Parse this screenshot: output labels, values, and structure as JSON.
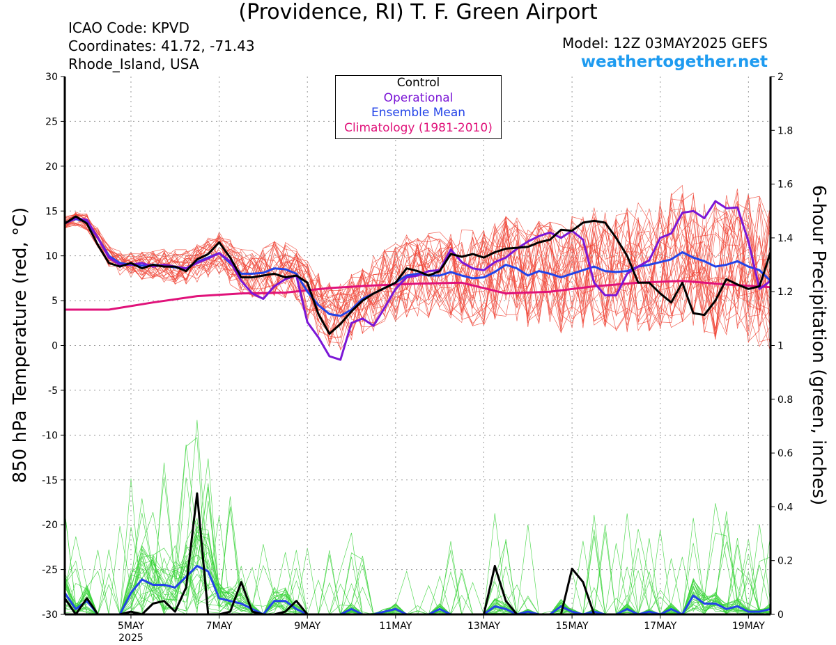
{
  "header": {
    "title": "(Providence, RI) T. F. Green Airport",
    "icao": "ICAO Code: KPVD",
    "coords": "Coordinates: 41.72, -71.43",
    "region": "Rhode_Island, USA",
    "model": "Model: 12Z 03MAY2025 GEFS",
    "site": "weathertogether.net"
  },
  "colors": {
    "control": "#000000",
    "operational": "#7b16d6",
    "mean": "#2343e8",
    "climo": "#e0127a",
    "members_temp": "#f0483a",
    "members_precip": "#39d43a",
    "site": "#1e9bf0"
  },
  "chart_data": {
    "type": "line",
    "x_unit": "6-hour steps from 03MAY2025 12Z",
    "x_range": [
      0,
      64
    ],
    "x_ticks": [
      {
        "x": 6,
        "label": "5MAY",
        "sub": "2025"
      },
      {
        "x": 14,
        "label": "7MAY"
      },
      {
        "x": 22,
        "label": "9MAY"
      },
      {
        "x": 30,
        "label": "11MAY"
      },
      {
        "x": 38,
        "label": "13MAY"
      },
      {
        "x": 46,
        "label": "15MAY"
      },
      {
        "x": 54,
        "label": "17MAY"
      },
      {
        "x": 62,
        "label": "19MAY"
      }
    ],
    "y_left": {
      "label": "850 hPa Temperature (red, °C)",
      "range": [
        -30,
        30
      ],
      "ticks": [
        "30",
        "25",
        "20",
        "15",
        "10",
        "5",
        "0",
        "-5",
        "-10",
        "-15",
        "-20",
        "-25",
        "-30"
      ],
      "tick_values": [
        30,
        25,
        20,
        15,
        10,
        5,
        0,
        -5,
        -10,
        -15,
        -20,
        -25,
        -30
      ]
    },
    "y_right": {
      "label": "6-hour Precipitation (green, inches)",
      "range": [
        0,
        2
      ],
      "ticks": [
        "2",
        "1.8",
        "1.6",
        "1.4",
        "1.2",
        "1",
        "0.8",
        "0.6",
        "0.4",
        "0.2",
        "0"
      ],
      "tick_values": [
        2,
        1.8,
        1.6,
        1.4,
        1.2,
        1,
        0.8,
        0.6,
        0.4,
        0.2,
        0
      ]
    },
    "grid": true,
    "legend_position": "top-center",
    "legend": [
      "Control",
      "Operational",
      "Ensemble Mean",
      "Climatology (1981-2010)"
    ],
    "series": [
      {
        "name": "Control",
        "axis": "left",
        "x": [
          0,
          1,
          2,
          3,
          4,
          5,
          6,
          7,
          8,
          9,
          10,
          11,
          12,
          13,
          14,
          15,
          16,
          17,
          18,
          19,
          20,
          21,
          22,
          23,
          24,
          25,
          26,
          27,
          28,
          29,
          30,
          31,
          32,
          33,
          34,
          35,
          36,
          37,
          38,
          39,
          40,
          41,
          42,
          43,
          44,
          45,
          46,
          47,
          48,
          49,
          50,
          51,
          52,
          53,
          54,
          55,
          56,
          57,
          58,
          59,
          60,
          61,
          62,
          63,
          64
        ],
        "values": [
          13.6,
          14.4,
          13.6,
          11.2,
          9.2,
          8.8,
          9.2,
          8.6,
          9.0,
          8.8,
          8.8,
          8.3,
          9.6,
          10.2,
          11.5,
          9.8,
          7.6,
          7.6,
          7.8,
          8.0,
          7.6,
          7.8,
          7.0,
          3.5,
          1.3,
          2.4,
          3.8,
          5.0,
          5.8,
          6.4,
          7.0,
          8.6,
          8.3,
          7.8,
          8.3,
          10.2,
          9.9,
          10.2,
          9.8,
          10.4,
          10.8,
          10.9,
          11.0,
          11.5,
          11.8,
          12.9,
          12.8,
          13.7,
          13.9,
          13.7,
          12.0,
          10.0,
          7.0,
          7.0,
          5.8,
          4.8,
          7.0,
          3.6,
          3.4,
          5.0,
          7.4,
          6.8,
          6.3,
          6.6,
          10.4
        ]
      },
      {
        "name": "Operational",
        "axis": "left",
        "x": [
          0,
          1,
          2,
          3,
          4,
          5,
          6,
          7,
          8,
          9,
          10,
          11,
          12,
          13,
          14,
          15,
          16,
          17,
          18,
          19,
          20,
          21,
          22,
          23,
          24,
          25,
          26,
          27,
          28,
          29,
          30,
          31,
          32,
          33,
          34,
          35,
          36,
          37,
          38,
          39,
          40,
          41,
          42,
          43,
          44,
          45,
          46,
          47,
          48,
          49,
          50,
          51,
          52,
          53,
          54,
          55,
          56,
          57,
          58,
          59,
          60,
          61,
          62,
          63,
          64
        ],
        "values": [
          13.6,
          14.2,
          14.0,
          12.0,
          9.8,
          9.0,
          9.0,
          9.2,
          8.8,
          9.0,
          8.8,
          8.6,
          9.2,
          9.7,
          10.3,
          9.4,
          7.2,
          5.8,
          5.2,
          6.6,
          7.4,
          7.8,
          2.6,
          0.9,
          -1.2,
          -1.6,
          2.5,
          3.0,
          2.2,
          4.2,
          6.3,
          7.6,
          7.8,
          8.3,
          8.4,
          10.7,
          9.3,
          8.6,
          8.4,
          9.3,
          9.8,
          10.8,
          11.6,
          12.2,
          12.6,
          12.0,
          12.8,
          11.8,
          7.0,
          5.6,
          5.6,
          8.0,
          8.8,
          9.5,
          12.0,
          12.5,
          14.8,
          15.0,
          14.2,
          16.1,
          15.3,
          15.4,
          11.6,
          6.3,
          7.2
        ]
      },
      {
        "name": "Ensemble Mean",
        "axis": "left",
        "x": [
          0,
          1,
          2,
          3,
          4,
          5,
          6,
          7,
          8,
          9,
          10,
          11,
          12,
          13,
          14,
          15,
          16,
          17,
          18,
          19,
          20,
          21,
          22,
          23,
          24,
          25,
          26,
          27,
          28,
          29,
          30,
          31,
          32,
          33,
          34,
          35,
          36,
          37,
          38,
          39,
          40,
          41,
          42,
          43,
          44,
          45,
          46,
          47,
          48,
          49,
          50,
          51,
          52,
          53,
          54,
          55,
          56,
          57,
          58,
          59,
          60,
          61,
          62,
          63,
          64
        ],
        "values": [
          13.7,
          14.1,
          13.8,
          12.0,
          10.0,
          9.2,
          9.0,
          8.9,
          9.0,
          8.9,
          8.7,
          8.6,
          9.3,
          9.8,
          10.3,
          9.2,
          8.0,
          8.0,
          8.1,
          8.6,
          8.5,
          8.0,
          6.0,
          4.5,
          3.5,
          3.3,
          4.0,
          5.2,
          5.8,
          6.4,
          7.0,
          7.8,
          8.0,
          7.8,
          7.8,
          8.2,
          7.8,
          7.5,
          7.6,
          8.2,
          9.0,
          8.6,
          7.8,
          8.3,
          8.0,
          7.6,
          8.0,
          8.4,
          8.8,
          8.3,
          8.2,
          8.3,
          8.8,
          9.0,
          9.3,
          9.6,
          10.4,
          9.8,
          9.4,
          8.8,
          9.0,
          9.4,
          8.8,
          8.4,
          7.2
        ]
      },
      {
        "name": "Climatology (1981-2010)",
        "axis": "left",
        "x": [
          0,
          4,
          8,
          12,
          16,
          20,
          24,
          28,
          32,
          36,
          40,
          44,
          48,
          52,
          56,
          60,
          64
        ],
        "values": [
          4.0,
          4.0,
          4.8,
          5.5,
          5.8,
          5.9,
          6.4,
          6.7,
          6.9,
          7.0,
          5.8,
          6.0,
          6.6,
          7.0,
          7.2,
          6.8,
          6.5
        ]
      },
      {
        "name": "Control",
        "axis": "right",
        "x": [
          0,
          1,
          2,
          3,
          4,
          5,
          6,
          7,
          8,
          9,
          10,
          11,
          12,
          13,
          14,
          15,
          16,
          17,
          18,
          19,
          20,
          21,
          22,
          23,
          24,
          25,
          26,
          27,
          28,
          29,
          30,
          31,
          32,
          33,
          34,
          35,
          36,
          37,
          38,
          39,
          40,
          41,
          42,
          43,
          44,
          45,
          46,
          47,
          48,
          49,
          50,
          51,
          52,
          53,
          54,
          55,
          56,
          57,
          58,
          59,
          60,
          61,
          62,
          63,
          64
        ],
        "values": [
          0.06,
          0.0,
          0.06,
          0.0,
          0.0,
          0.0,
          0.01,
          0.0,
          0.04,
          0.05,
          0.01,
          0.1,
          0.45,
          0.0,
          0.0,
          0.01,
          0.12,
          0.01,
          0.0,
          0.0,
          0.01,
          0.05,
          0.0,
          0.0,
          0.0,
          0.0,
          0.0,
          0.0,
          0.0,
          0.0,
          0.0,
          0.0,
          0.0,
          0.0,
          0.0,
          0.0,
          0.0,
          0.0,
          0.0,
          0.18,
          0.05,
          0.0,
          0.0,
          0.0,
          0.0,
          0.0,
          0.17,
          0.12,
          0.0,
          0.0,
          0.0,
          0.0,
          0.0,
          0.0,
          0.0,
          0.0,
          0.0,
          0.0,
          0.0,
          0.0,
          0.0,
          0.0,
          0.0,
          0.0,
          0.0
        ]
      },
      {
        "name": "Ensemble Mean",
        "axis": "right",
        "x": [
          0,
          1,
          2,
          3,
          4,
          5,
          6,
          7,
          8,
          9,
          10,
          11,
          12,
          13,
          14,
          15,
          16,
          17,
          18,
          19,
          20,
          21,
          22,
          23,
          24,
          25,
          26,
          27,
          28,
          29,
          30,
          31,
          32,
          33,
          34,
          35,
          36,
          37,
          38,
          39,
          40,
          41,
          42,
          43,
          44,
          45,
          46,
          47,
          48,
          49,
          50,
          51,
          52,
          53,
          54,
          55,
          56,
          57,
          58,
          59,
          60,
          61,
          62,
          63,
          64
        ],
        "values": [
          0.08,
          0.02,
          0.05,
          0.0,
          0.0,
          0.0,
          0.08,
          0.13,
          0.11,
          0.11,
          0.1,
          0.14,
          0.18,
          0.16,
          0.06,
          0.05,
          0.04,
          0.02,
          0.0,
          0.05,
          0.05,
          0.02,
          0.0,
          0.0,
          0.0,
          0.0,
          0.02,
          0.0,
          0.0,
          0.01,
          0.02,
          0.0,
          0.0,
          0.0,
          0.02,
          0.0,
          0.0,
          0.0,
          0.0,
          0.03,
          0.02,
          0.0,
          0.01,
          0.0,
          0.0,
          0.03,
          0.01,
          0.0,
          0.01,
          0.0,
          0.0,
          0.02,
          0.0,
          0.01,
          0.0,
          0.02,
          0.0,
          0.07,
          0.04,
          0.04,
          0.02,
          0.03,
          0.01,
          0.01,
          0.02
        ]
      }
    ],
    "member_counts": {
      "temperature": 30,
      "precipitation": 30
    }
  }
}
